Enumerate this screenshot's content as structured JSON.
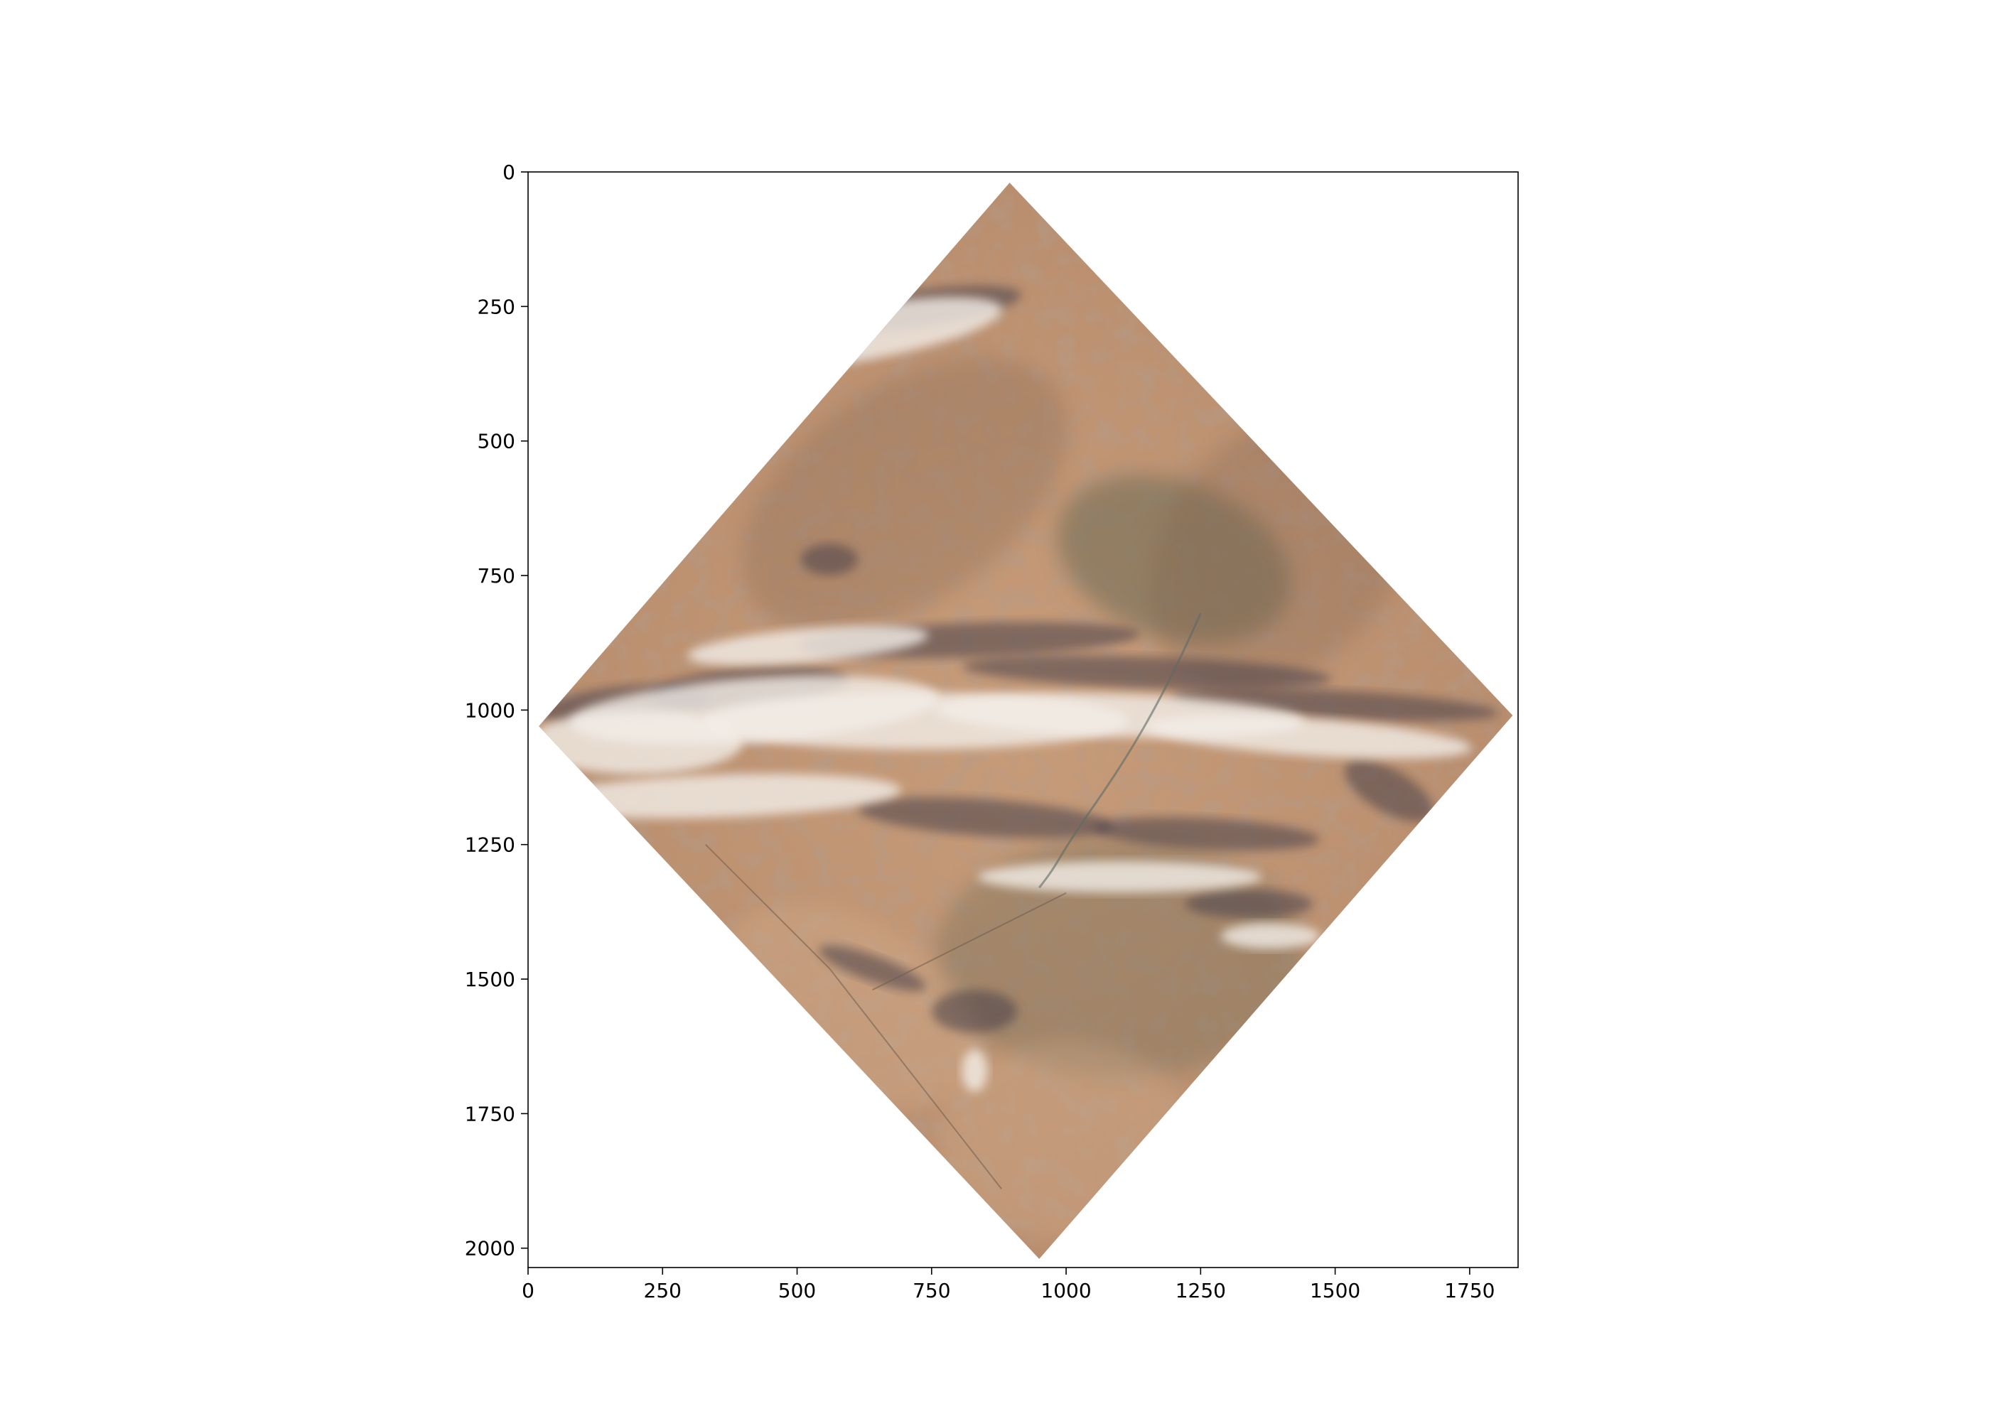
{
  "chart_data": {
    "type": "image",
    "title": "",
    "xlabel": "",
    "ylabel": "",
    "xlim": [
      0,
      1840
    ],
    "ylim": [
      2036,
      0
    ],
    "x_ticks": [
      0,
      250,
      500,
      750,
      1000,
      1250,
      1500,
      1750
    ],
    "y_ticks": [
      0,
      250,
      500,
      750,
      1000,
      1250,
      1500,
      1750,
      2000
    ],
    "x_tick_labels": [
      "0",
      "250",
      "500",
      "750",
      "1000",
      "1250",
      "1500",
      "1750"
    ],
    "y_tick_labels": [
      "0",
      "250",
      "500",
      "750",
      "1000",
      "1250",
      "1500",
      "1750",
      "2000"
    ],
    "grid": false,
    "image_footprint": {
      "shape": "rotated-square",
      "vertices_data_units": [
        [
          895,
          20
        ],
        [
          1830,
          1010
        ],
        [
          950,
          2020
        ],
        [
          20,
          1030
        ]
      ]
    },
    "colors": {
      "terrain_base": "#c09574",
      "terrain_light": "#d5b08f",
      "terrain_dark": "#7a5d4b",
      "shadow": "#4a4048",
      "cloud": "#f3eee8",
      "vegetation": "#6e6a55"
    }
  }
}
